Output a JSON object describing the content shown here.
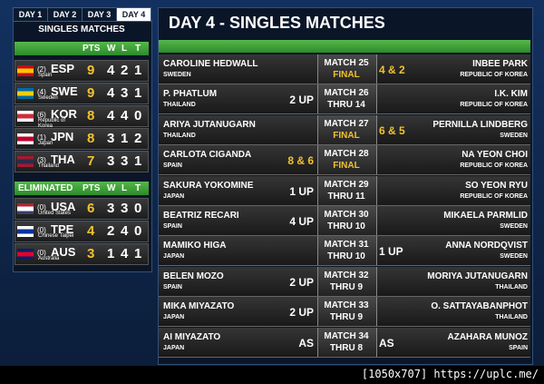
{
  "tabs": [
    "DAY 1",
    "DAY 2",
    "DAY 3",
    "DAY 4"
  ],
  "standings": {
    "title": "SINGLES MATCHES",
    "columns": [
      "PTS",
      "W",
      "L",
      "T"
    ],
    "teams": [
      {
        "seed": "(2)",
        "code": "ESP",
        "country": "Spain",
        "pts": 9,
        "w": 4,
        "l": 2,
        "t": 1
      },
      {
        "seed": "(4)",
        "code": "SWE",
        "country": "Sweden",
        "pts": 9,
        "w": 4,
        "l": 3,
        "t": 1
      },
      {
        "seed": "(6)",
        "code": "KOR",
        "country": "Republic of Korea",
        "pts": 8,
        "w": 4,
        "l": 4,
        "t": 0
      },
      {
        "seed": "(1)",
        "code": "JPN",
        "country": "Japan",
        "pts": 8,
        "w": 3,
        "l": 1,
        "t": 2
      },
      {
        "seed": "(3)",
        "code": "THA",
        "country": "Thailand",
        "pts": 7,
        "w": 3,
        "l": 3,
        "t": 1
      }
    ],
    "eliminated_title": "ELIMINATED",
    "eliminated_columns": [
      "PTS",
      "W",
      "L",
      "T"
    ],
    "eliminated": [
      {
        "seed": "(0)",
        "code": "USA",
        "country": "United States",
        "pts": 6,
        "w": 3,
        "l": 3,
        "t": 0
      },
      {
        "seed": "(0)",
        "code": "TPE",
        "country": "Chinese Taipei",
        "pts": 4,
        "w": 2,
        "l": 4,
        "t": 0
      },
      {
        "seed": "(0)",
        "code": "AUS",
        "country": "Australia",
        "pts": 3,
        "w": 1,
        "l": 4,
        "t": 1
      }
    ]
  },
  "matches_title": "DAY 4 - SINGLES MATCHES",
  "matches": [
    {
      "left": {
        "name": "CAROLINE HEDWALL",
        "country": "SWEDEN"
      },
      "match": "MATCH 25",
      "status": "FINAL",
      "status_color": "#f2c230",
      "right": {
        "name": "INBEE PARK",
        "country": "REPUBLIC OF KOREA",
        "score": "4 & 2",
        "score_color": "#f2c230"
      }
    },
    {
      "left": {
        "name": "P. PHATLUM",
        "country": "THAILAND",
        "score": "2 UP",
        "score_color": "#ffffff"
      },
      "match": "MATCH 26",
      "status": "THRU 14",
      "status_color": "#ffffff",
      "right": {
        "name": "I.K. KIM",
        "country": "REPUBLIC OF KOREA"
      }
    },
    {
      "left": {
        "name": "ARIYA JUTANUGARN",
        "country": "THAILAND"
      },
      "match": "MATCH 27",
      "status": "FINAL",
      "status_color": "#f2c230",
      "right": {
        "name": "PERNILLA LINDBERG",
        "country": "SWEDEN",
        "score": "6 & 5",
        "score_color": "#f2c230"
      }
    },
    {
      "left": {
        "name": "CARLOTA CIGANDA",
        "country": "SPAIN",
        "score": "8 & 6",
        "score_color": "#f2c230"
      },
      "match": "MATCH 28",
      "status": "FINAL",
      "status_color": "#f2c230",
      "right": {
        "name": "NA YEON CHOI",
        "country": "REPUBLIC OF KOREA"
      }
    },
    {
      "left": {
        "name": "SAKURA YOKOMINE",
        "country": "JAPAN",
        "score": "1 UP",
        "score_color": "#ffffff"
      },
      "match": "MATCH 29",
      "status": "THRU 11",
      "status_color": "#ffffff",
      "right": {
        "name": "SO YEON RYU",
        "country": "REPUBLIC OF KOREA"
      }
    },
    {
      "left": {
        "name": "BEATRIZ RECARI",
        "country": "SPAIN",
        "score": "4 UP",
        "score_color": "#ffffff"
      },
      "match": "MATCH 30",
      "status": "THRU 10",
      "status_color": "#ffffff",
      "right": {
        "name": "MIKAELA PARMLID",
        "country": "SWEDEN"
      }
    },
    {
      "left": {
        "name": "MAMIKO HIGA",
        "country": "JAPAN"
      },
      "match": "MATCH 31",
      "status": "THRU 10",
      "status_color": "#ffffff",
      "right": {
        "name": "ANNA NORDQVIST",
        "country": "SWEDEN",
        "score": "1 UP",
        "score_color": "#ffffff"
      }
    },
    {
      "left": {
        "name": "BELEN MOZO",
        "country": "SPAIN",
        "score": "2 UP",
        "score_color": "#ffffff"
      },
      "match": "MATCH 32",
      "status": "THRU 9",
      "status_color": "#ffffff",
      "right": {
        "name": "MORIYA JUTANUGARN",
        "country": "THAILAND"
      }
    },
    {
      "left": {
        "name": "MIKA MIYAZATO",
        "country": "JAPAN",
        "score": "2 UP",
        "score_color": "#ffffff"
      },
      "match": "MATCH 33",
      "status": "THRU 9",
      "status_color": "#ffffff",
      "right": {
        "name": "O. SATTAYABANPHOT",
        "country": "THAILAND"
      }
    },
    {
      "left": {
        "name": "AI MIYAZATO",
        "country": "JAPAN",
        "score": "AS",
        "score_color": "#ffffff"
      },
      "match": "MATCH 34",
      "status": "THRU 8",
      "status_color": "#ffffff",
      "right": {
        "name": "AZAHARA MUNOZ",
        "country": "SPAIN",
        "score": "AS",
        "score_color": "#ffffff"
      }
    }
  ],
  "watermark": "[1050x707] https://uplc.me/"
}
